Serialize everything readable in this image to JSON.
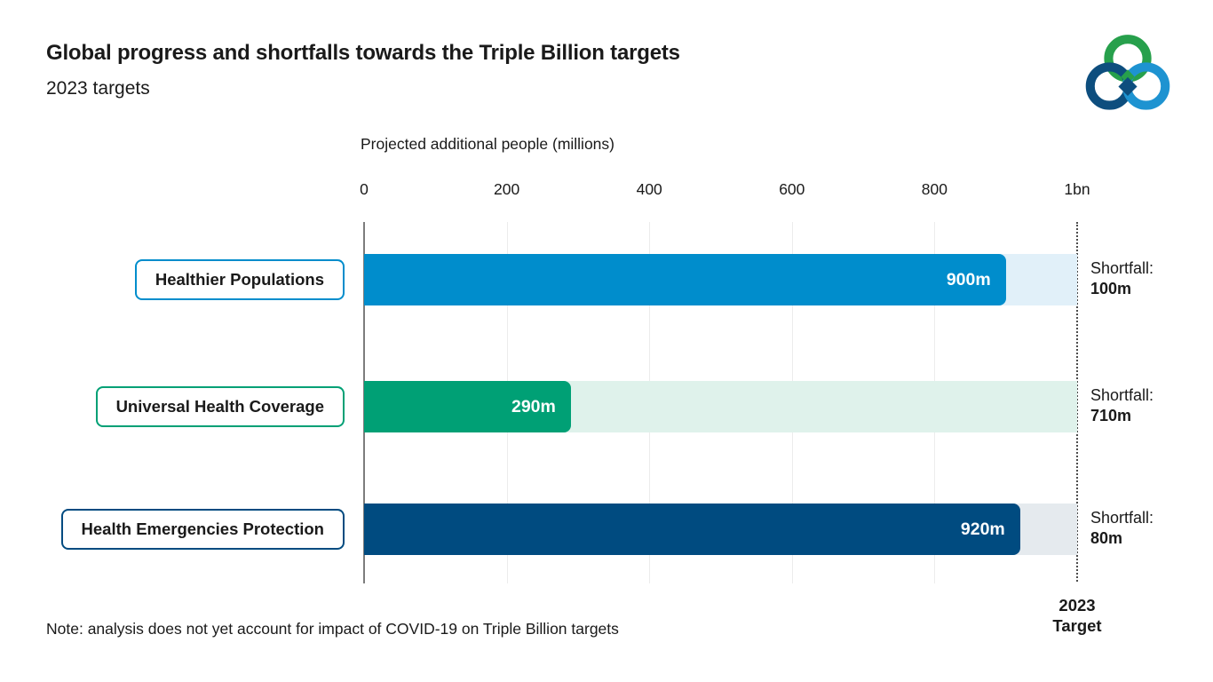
{
  "header": {
    "title": "Global progress and shortfalls towards the Triple Billion targets",
    "subtitle": "2023 targets"
  },
  "logo": {
    "name": "triple-billion-rings",
    "colors": {
      "green": "#27A04C",
      "navy": "#0D4E7E",
      "blue": "#1E93D1"
    }
  },
  "axis": {
    "title": "Projected additional people (millions)",
    "max": 1000,
    "ticks": [
      {
        "value": 0,
        "label": "0"
      },
      {
        "value": 200,
        "label": "200"
      },
      {
        "value": 400,
        "label": "400"
      },
      {
        "value": 600,
        "label": "600"
      },
      {
        "value": 800,
        "label": "800"
      },
      {
        "value": 1000,
        "label": "1bn"
      }
    ],
    "gridline_values": [
      200,
      400,
      600,
      800
    ]
  },
  "rows": [
    {
      "label": "Healthier Populations",
      "value": 900,
      "value_label": "900m",
      "shortfall_title": "Shortfall:",
      "shortfall_value": "100m",
      "bar_color": "#008DCC",
      "track_color": "#E1F0F9"
    },
    {
      "label": "Universal Health Coverage",
      "value": 290,
      "value_label": "290m",
      "shortfall_title": "Shortfall:",
      "shortfall_value": "710m",
      "bar_color": "#00A075",
      "track_color": "#DFF2EB"
    },
    {
      "label": "Health Emergencies Protection",
      "value": 920,
      "value_label": "920m",
      "shortfall_title": "Shortfall:",
      "shortfall_value": "80m",
      "bar_color": "#004B80",
      "track_color": "#E5EAEE"
    }
  ],
  "target": {
    "line1": "2023",
    "line2": "Target"
  },
  "footer": {
    "note": "Note: analysis does not yet account for impact of COVID-19 on Triple Billion targets"
  },
  "chart_data": {
    "type": "bar",
    "orientation": "horizontal",
    "title": "Global progress and shortfalls towards the Triple Billion targets",
    "subtitle": "2023 targets",
    "xlabel": "Projected additional people (millions)",
    "ylabel": "",
    "xlim": [
      0,
      1000
    ],
    "xtick_labels": [
      "0",
      "200",
      "400",
      "600",
      "800",
      "1bn"
    ],
    "grid": true,
    "target_line": {
      "value": 1000,
      "label": "2023 Target",
      "style": "dotted"
    },
    "categories": [
      "Healthier Populations",
      "Universal Health Coverage",
      "Health Emergencies Protection"
    ],
    "series": [
      {
        "name": "Projected additional people (millions)",
        "values": [
          900,
          290,
          920
        ],
        "data_labels": [
          "900m",
          "290m",
          "920m"
        ],
        "colors": [
          "#008DCC",
          "#00A075",
          "#004B80"
        ]
      },
      {
        "name": "Shortfall to 2023 target",
        "values": [
          100,
          710,
          80
        ],
        "data_labels": [
          "Shortfall: 100m",
          "Shortfall: 710m",
          "Shortfall: 80m"
        ],
        "colors": [
          "#E1F0F9",
          "#DFF2EB",
          "#E5EAEE"
        ]
      }
    ],
    "note": "Note: analysis does not yet account for impact of COVID-19 on Triple Billion targets"
  }
}
